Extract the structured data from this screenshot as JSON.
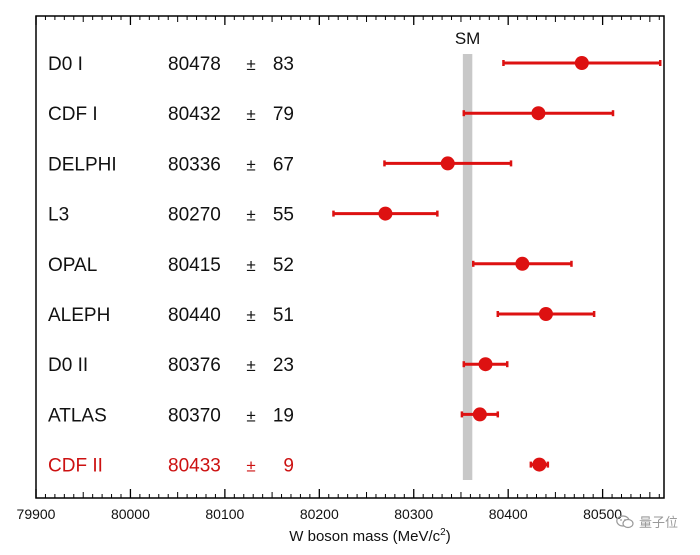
{
  "chart_data": {
    "type": "scatter",
    "xlabel": "W boson mass (MeV/c",
    "xlabel_sup": "2",
    "xlabel_end": ")",
    "xlim": [
      79900,
      80565
    ],
    "xticks": [
      79900,
      80000,
      80100,
      80200,
      80300,
      80400,
      80500
    ],
    "band": {
      "label": "SM",
      "x_low": 80352,
      "x_high": 80362,
      "color": "#c8c8c8"
    },
    "pm": "±",
    "points": [
      {
        "name": "D0 I",
        "value": 80478,
        "error": 83,
        "value_text": "80478",
        "error_text": "83",
        "highlight": false
      },
      {
        "name": "CDF I",
        "value": 80432,
        "error": 79,
        "value_text": "80432",
        "error_text": "79",
        "highlight": false
      },
      {
        "name": "DELPHI",
        "value": 80336,
        "error": 67,
        "value_text": "80336",
        "error_text": "67",
        "highlight": false
      },
      {
        "name": "L3",
        "value": 80270,
        "error": 55,
        "value_text": "80270",
        "error_text": "55",
        "highlight": false
      },
      {
        "name": "OPAL",
        "value": 80415,
        "error": 52,
        "value_text": "80415",
        "error_text": "52",
        "highlight": false
      },
      {
        "name": "ALEPH",
        "value": 80440,
        "error": 51,
        "value_text": "80440",
        "error_text": "51",
        "highlight": false
      },
      {
        "name": "D0 II",
        "value": 80376,
        "error": 23,
        "value_text": "80376",
        "error_text": "23",
        "highlight": false
      },
      {
        "name": "ATLAS",
        "value": 80370,
        "error": 19,
        "value_text": "80370",
        "error_text": "19",
        "highlight": false
      },
      {
        "name": "CDF II",
        "value": 80433,
        "error": 9,
        "value_text": "80433",
        "error_text": "9",
        "highlight": true
      }
    ],
    "colors": {
      "marker": "#dd1111",
      "highlight_text": "#cc1111",
      "text": "#111111",
      "axis": "#000000"
    }
  },
  "watermark": {
    "text": "量子位",
    "icon": "wechat-icon"
  }
}
